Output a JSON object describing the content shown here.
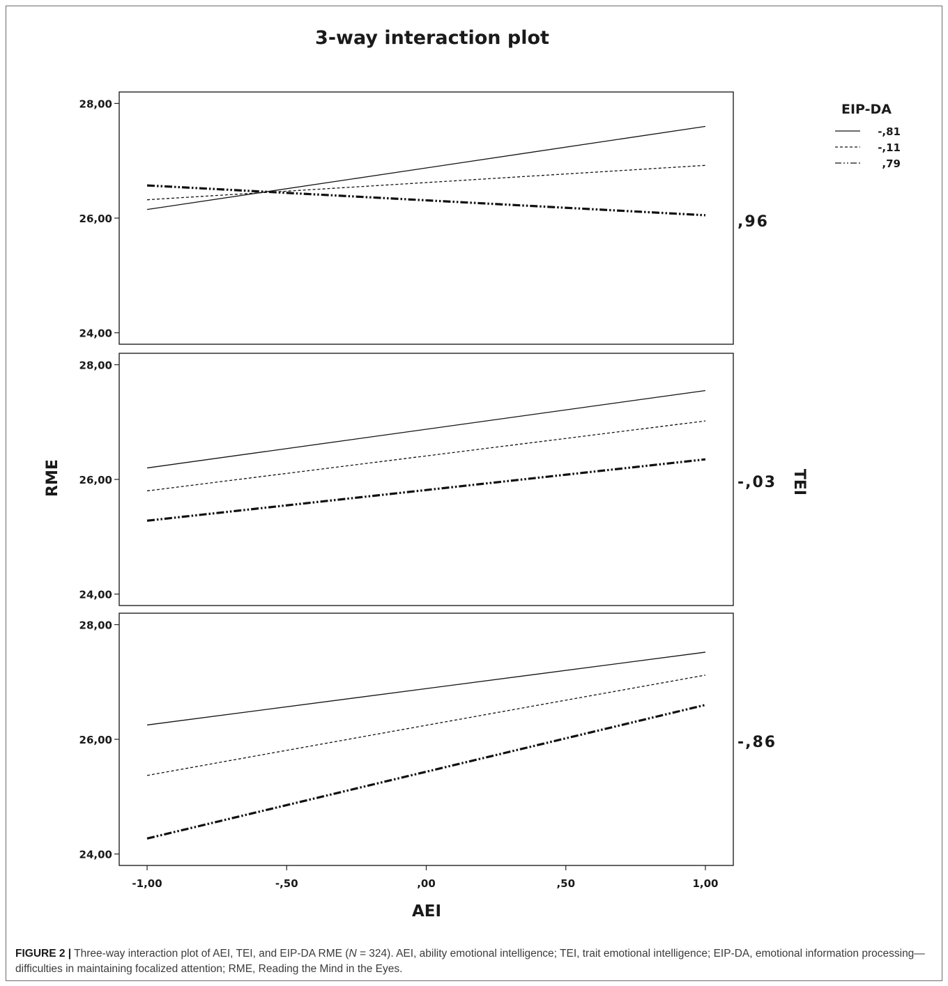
{
  "chart_data": {
    "type": "line",
    "title": "3-way interaction plot",
    "xlabel": "AEI",
    "ylabel": "RME",
    "facet_label": "TEI",
    "xlim": [
      -1.1,
      1.1
    ],
    "ylim": [
      23.8,
      28.2
    ],
    "x_ticks": [
      "-1,00",
      "-,50",
      ",00",
      ",50",
      "1,00"
    ],
    "y_ticks": [
      "24,00",
      "26,00",
      "28,00"
    ],
    "grid": false,
    "legend_title": "EIP-DA",
    "legend_placement": "top-right",
    "panels": [
      {
        "facet_value": ",96",
        "series": [
          {
            "name": "-,81",
            "style": "solid",
            "x": [
              -1,
              1
            ],
            "y": [
              26.15,
              27.6
            ]
          },
          {
            "name": "-,11",
            "style": "dashed",
            "x": [
              -1,
              1
            ],
            "y": [
              26.32,
              26.92
            ]
          },
          {
            "name": ",79",
            "style": "dash-dot-dot",
            "x": [
              -1,
              1
            ],
            "y": [
              26.57,
              26.05
            ]
          }
        ]
      },
      {
        "facet_value": "-,03",
        "series": [
          {
            "name": "-,81",
            "style": "solid",
            "x": [
              -1,
              1
            ],
            "y": [
              26.2,
              27.55
            ]
          },
          {
            "name": "-,11",
            "style": "dashed",
            "x": [
              -1,
              1
            ],
            "y": [
              25.8,
              27.02
            ]
          },
          {
            "name": ",79",
            "style": "dash-dot-dot",
            "x": [
              -1,
              1
            ],
            "y": [
              25.28,
              26.35
            ]
          }
        ]
      },
      {
        "facet_value": "-,86",
        "series": [
          {
            "name": "-,81",
            "style": "solid",
            "x": [
              -1,
              1
            ],
            "y": [
              26.25,
              27.52
            ]
          },
          {
            "name": "-,11",
            "style": "dashed",
            "x": [
              -1,
              1
            ],
            "y": [
              25.37,
              27.12
            ]
          },
          {
            "name": ",79",
            "style": "dash-dot-dot",
            "x": [
              -1,
              1
            ],
            "y": [
              24.27,
              26.6
            ]
          }
        ]
      }
    ]
  },
  "caption": {
    "label": "FIGURE 2 |",
    "text_before_n": " Three-way interaction plot of AEI, TEI, and EIP-DA RME (",
    "n_symbol": "N",
    "text_after_n": " = 324). AEI, ability emotional intelligence; TEI, trait emotional intelligence; EIP-DA, emotional information processing—difficulties in maintaining focalized attention; RME, Reading the Mind in the Eyes."
  }
}
